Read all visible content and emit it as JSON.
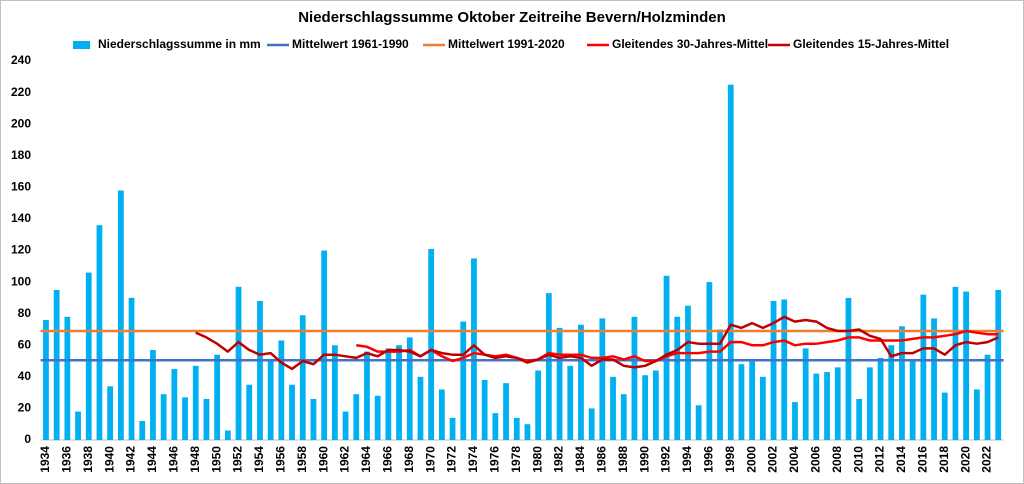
{
  "chart_data": {
    "type": "bar",
    "title": "Niederschlagssumme Oktober Zeitreihe Bevern/Holzminden",
    "categories": [
      "1934",
      null,
      "1936",
      null,
      "1938",
      null,
      "1940",
      null,
      "1942",
      null,
      "1944",
      null,
      "1946",
      null,
      "1948",
      null,
      "1950",
      null,
      "1952",
      null,
      "1954",
      null,
      "1956",
      null,
      "1958",
      null,
      "1960",
      null,
      "1962",
      null,
      "1964",
      null,
      "1966",
      null,
      "1968",
      null,
      "1970",
      null,
      "1972",
      null,
      "1974",
      null,
      "1976",
      null,
      "1978",
      null,
      "1980",
      null,
      "1982",
      null,
      "1984",
      null,
      "1986",
      null,
      "1988",
      null,
      "1990",
      null,
      "1992",
      null,
      "1994",
      null,
      "1996",
      null,
      "1998",
      null,
      "2000",
      null,
      "2002",
      null,
      "2004",
      null,
      "2006",
      null,
      "2008",
      null,
      "2010",
      null,
      "2012",
      null,
      "2014",
      null,
      "2016",
      null,
      "2018",
      null,
      "2020",
      null,
      "2022",
      null
    ],
    "series": [
      {
        "name": "Niederschlagssumme in mm",
        "color": "#00b0f0",
        "kind": "bar",
        "values": [
          76,
          95,
          78,
          18,
          106,
          136,
          34,
          158,
          90,
          12,
          57,
          29,
          45,
          27,
          47,
          26,
          54,
          6,
          97,
          35,
          88,
          50,
          63,
          35,
          79,
          26,
          120,
          60,
          18,
          29,
          56,
          28,
          58,
          60,
          65,
          40,
          121,
          32,
          14,
          75,
          115,
          38,
          17,
          36,
          14,
          10,
          44,
          93,
          71,
          47,
          73,
          20,
          77,
          40,
          29,
          78,
          41,
          44,
          104,
          78,
          85,
          22,
          100,
          70,
          225,
          48,
          50,
          40,
          88,
          89,
          24,
          58,
          42,
          43,
          46,
          90,
          26,
          46,
          52,
          60,
          72,
          50,
          92,
          77,
          30,
          97,
          94,
          32,
          54,
          95
        ]
      },
      {
        "name": "Mittelwert 1961-1990",
        "color": "#4472c4",
        "kind": "hline",
        "value": 50.5
      },
      {
        "name": "Mittelwert 1991-2020",
        "color": "#ed7d31",
        "kind": "hline",
        "value": 69
      },
      {
        "name": "Gleitendes 30-Jahres-Mittel",
        "color": "#ff0000",
        "kind": "line",
        "values": [
          null,
          null,
          null,
          null,
          null,
          null,
          null,
          null,
          null,
          null,
          null,
          null,
          null,
          null,
          null,
          null,
          null,
          null,
          null,
          null,
          null,
          null,
          null,
          null,
          null,
          null,
          null,
          null,
          null,
          60,
          59,
          56,
          56,
          56,
          57,
          53,
          57,
          53,
          50,
          52,
          55,
          54,
          53,
          54,
          52,
          50,
          51,
          55,
          54,
          54,
          54,
          52,
          52,
          53,
          51,
          53,
          50,
          50,
          53,
          55,
          55,
          55,
          56,
          56,
          62,
          62,
          60,
          60,
          62,
          63,
          60,
          61,
          61,
          62,
          63,
          65,
          65,
          63,
          63,
          63,
          63,
          64,
          65,
          65,
          66,
          67,
          69,
          68,
          67,
          67
        ]
      },
      {
        "name": "Gleitendes 15-Jahres-Mittel",
        "color": "#c00000",
        "kind": "line",
        "values": [
          null,
          null,
          null,
          null,
          null,
          null,
          null,
          null,
          null,
          null,
          null,
          null,
          null,
          null,
          68,
          65,
          61,
          56,
          62,
          57,
          54,
          55,
          49,
          45,
          50,
          48,
          54,
          54,
          53,
          52,
          55,
          53,
          57,
          57,
          56,
          53,
          57,
          55,
          54,
          54,
          60,
          54,
          52,
          53,
          52,
          49,
          51,
          54,
          52,
          53,
          52,
          47,
          51,
          51,
          47,
          46,
          47,
          50,
          54,
          57,
          62,
          61,
          61,
          61,
          73,
          71,
          74,
          71,
          74,
          78,
          75,
          76,
          75,
          71,
          69,
          69,
          70,
          66,
          64,
          53,
          55,
          55,
          58,
          58,
          54,
          60,
          62,
          61,
          62,
          65
        ]
      }
    ],
    "ylim": [
      0,
      240
    ],
    "yticks": [
      0,
      20,
      40,
      60,
      80,
      100,
      120,
      140,
      160,
      180,
      200,
      220,
      240
    ],
    "grid": false
  }
}
